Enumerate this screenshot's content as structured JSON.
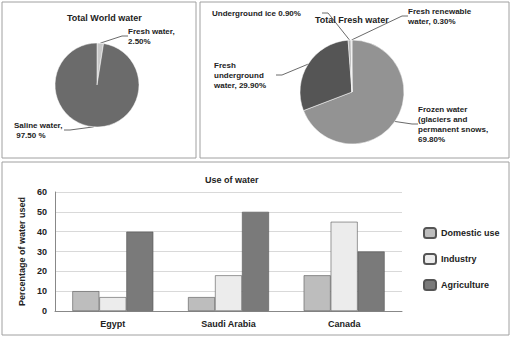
{
  "chart_data": [
    {
      "type": "pie",
      "title": "Total World water",
      "categories": [
        "Fresh water",
        "Saline water"
      ],
      "values": [
        2.5,
        97.5
      ],
      "value_labels": [
        "Fresh water, 2.50%",
        "Saline water, 97.50 %"
      ],
      "colors": [
        "#c8c8c8",
        "#6b6b6b"
      ],
      "data_labels": true
    },
    {
      "type": "pie",
      "title": "Total Fresh water",
      "categories": [
        "Frozen water (glaciers and permanent snows",
        "Fresh underground water",
        "Underground ice",
        "Fresh renewable water"
      ],
      "values": [
        69.8,
        29.9,
        0.9,
        0.3
      ],
      "value_labels": [
        "Frozen water (glaciers and permanent snows, 69.80%",
        "Fresh underground water, 29.90%",
        "Underground ice 0.90%",
        "Fresh renewable water, 0.30%"
      ],
      "colors": [
        "#939393",
        "#555555",
        "#b4b4b4",
        "#dcdcdc"
      ],
      "data_labels": true
    },
    {
      "type": "bar",
      "title": "Use of water",
      "ylabel": "Percentage of water used",
      "categories": [
        "Egypt",
        "Saudi Arabia",
        "Canada"
      ],
      "series": [
        {
          "name": "Domestic use",
          "color": "#bdbdbd",
          "values": [
            10,
            7,
            18
          ]
        },
        {
          "name": "Industry",
          "color": "#ececec",
          "values": [
            7,
            18,
            45
          ]
        },
        {
          "name": "Agriculture",
          "color": "#7a7a7a",
          "values": [
            40,
            50,
            30
          ]
        }
      ],
      "ylim": [
        0,
        60
      ],
      "yticks": [
        0,
        10,
        20,
        30,
        40,
        50,
        60
      ],
      "grid": true,
      "legend": "right"
    }
  ]
}
